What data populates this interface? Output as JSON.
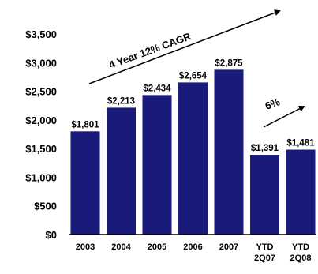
{
  "chart_data": {
    "type": "bar",
    "categories": [
      [
        "2003"
      ],
      [
        "2004"
      ],
      [
        "2005"
      ],
      [
        "2006"
      ],
      [
        "2007"
      ],
      [
        "YTD",
        "2Q07"
      ],
      [
        "YTD",
        "2Q08"
      ]
    ],
    "values": [
      1801,
      2213,
      2434,
      2654,
      2875,
      1391,
      1481
    ],
    "data_labels": [
      "$1,801",
      "$2,213",
      "$2,434",
      "$2,654",
      "$2,875",
      "$1,391",
      "$1,481"
    ],
    "yticks": [
      "$0",
      "$500",
      "$1,000",
      "$1,500",
      "$2,000",
      "$2,500",
      "$3,000",
      "$3,500"
    ],
    "ylim": [
      0,
      3500
    ],
    "grid": false,
    "title": "",
    "xlabel": "",
    "ylabel": "",
    "bar_color": "#1a1a7a",
    "annotations": [
      {
        "text": "4 Year 12% CAGR",
        "spans_categories": [
          "2003",
          "2007"
        ]
      },
      {
        "text": "6%",
        "spans_categories": [
          "YTD 2Q07",
          "YTD 2Q08"
        ]
      }
    ]
  }
}
